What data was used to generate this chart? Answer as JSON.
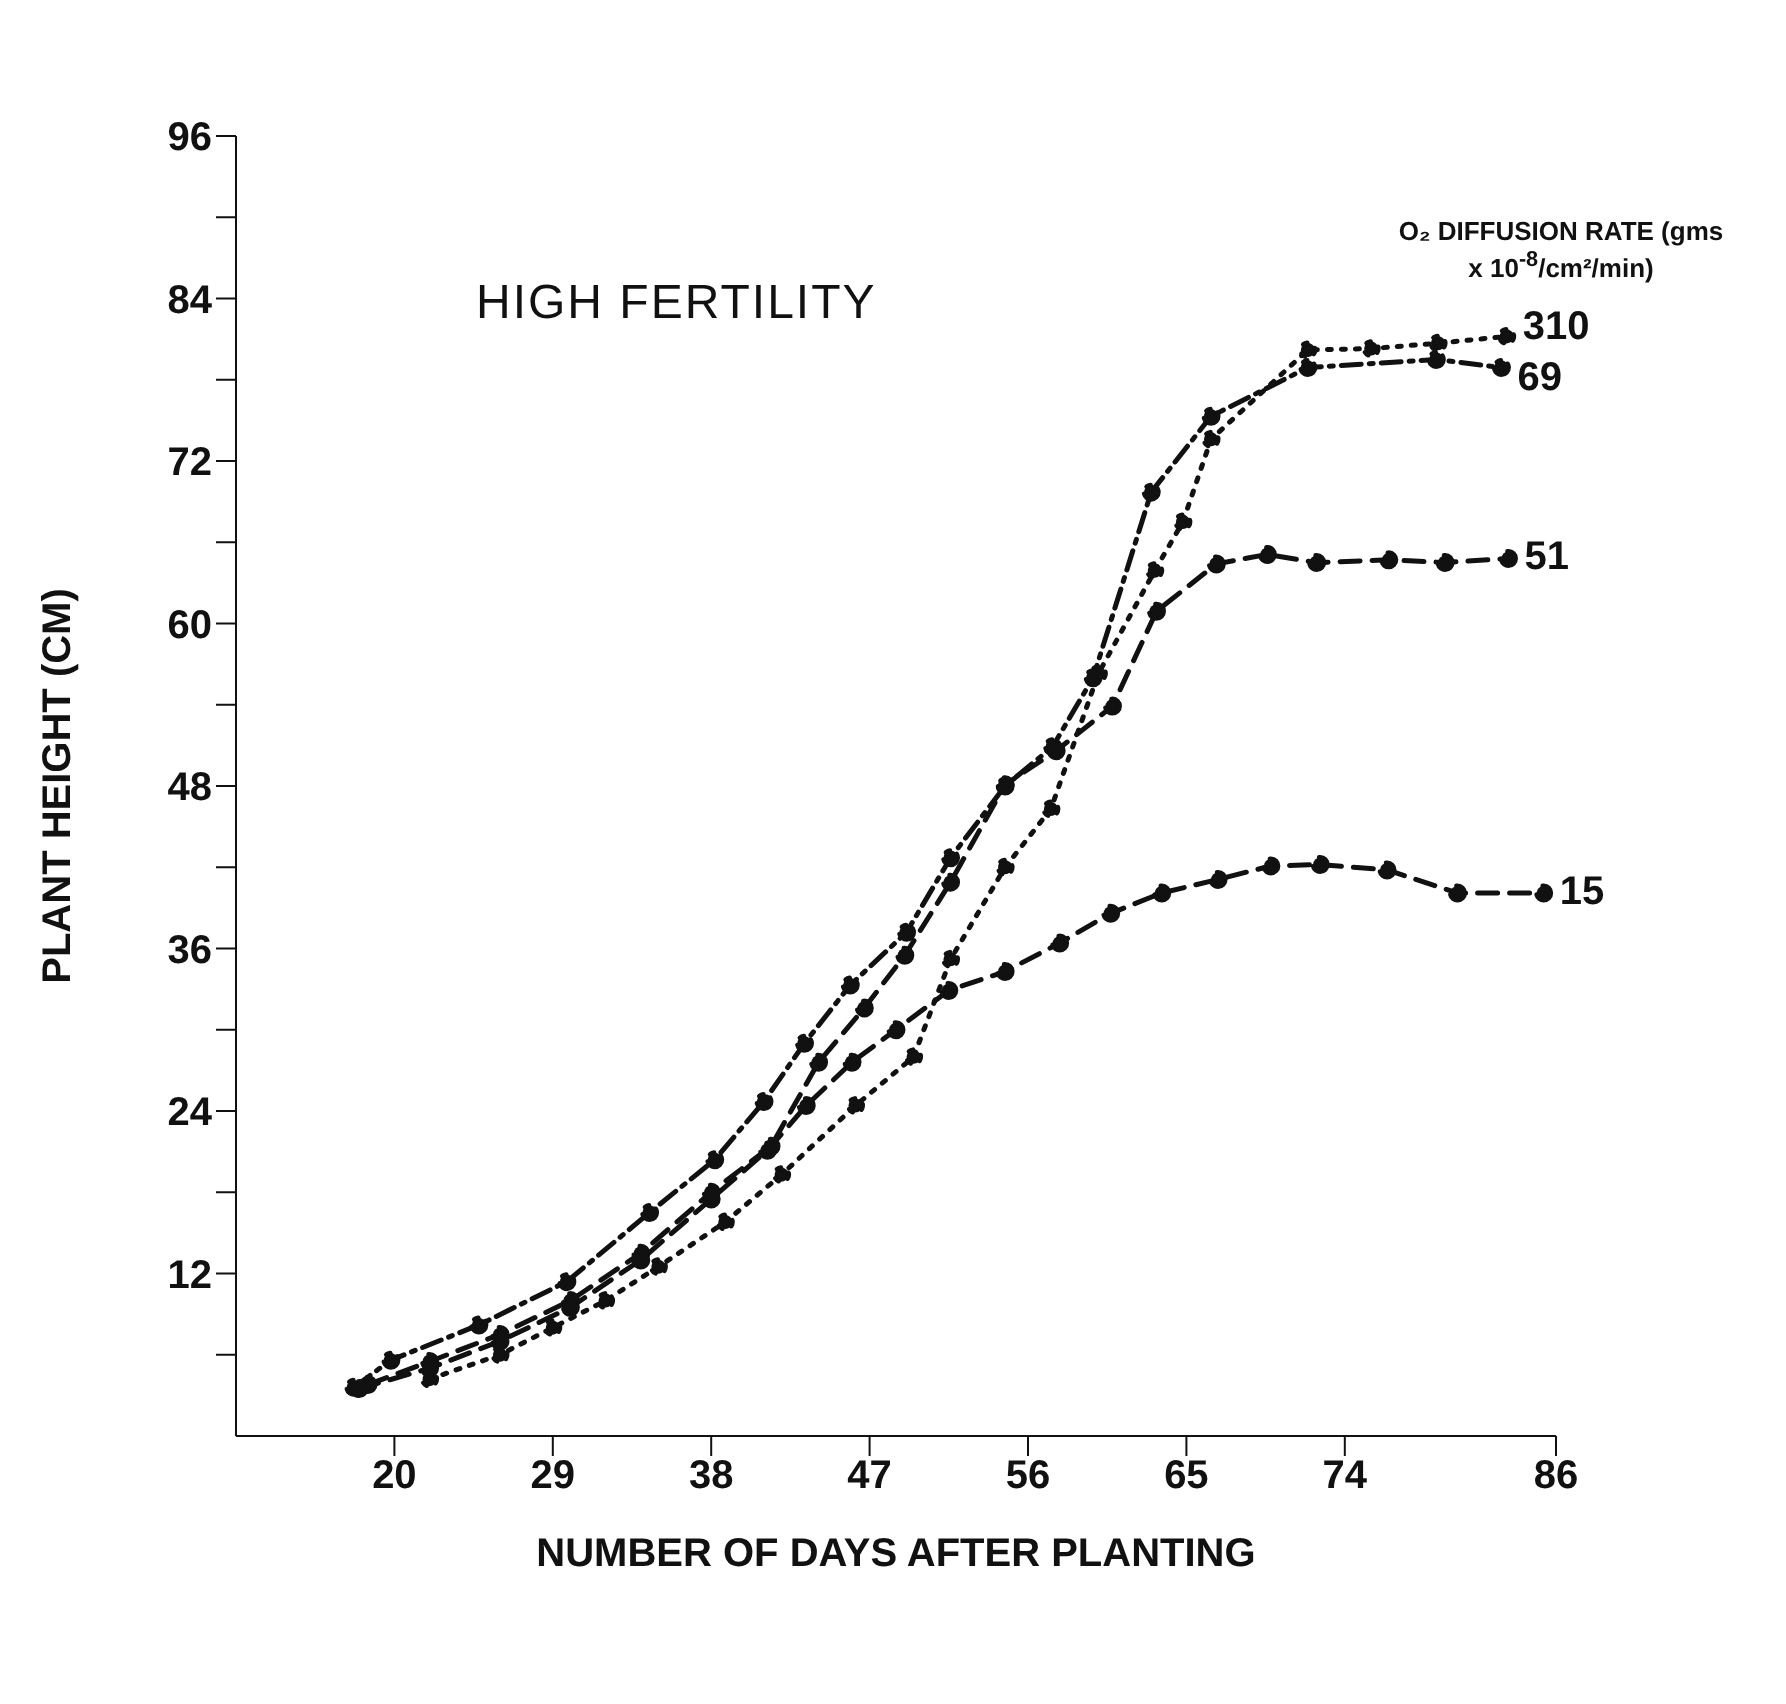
{
  "chart_data": {
    "type": "line",
    "title": "HIGH FERTILITY",
    "xlabel": "NUMBER OF DAYS AFTER PLANTING",
    "ylabel": "PLANT HEIGHT (CM)",
    "legend_title": "O₂ DIFFUSION RATE (gms x 10$^{-8}$/cm²/min)",
    "xlim": [
      11,
      86
    ],
    "xticks": [
      20,
      29,
      38,
      47,
      56,
      65,
      74,
      86
    ],
    "ylim": [
      0,
      96
    ],
    "yticks": [
      {
        "value": 6,
        "label": null
      },
      12,
      {
        "value": 18,
        "label": null
      },
      24,
      {
        "value": 30,
        "label": null
      },
      36,
      {
        "value": 42,
        "label": null
      },
      48,
      {
        "value": 54,
        "label": null
      },
      60,
      {
        "value": 66,
        "label": null
      },
      72,
      {
        "value": 78,
        "label": null
      },
      84,
      {
        "value": 90,
        "label": null
      },
      96
    ],
    "grid": false,
    "legend": false,
    "marker": "circle",
    "series": [
      {
        "name": "310",
        "color": "#111111",
        "line_style": "dotted",
        "x": [
          22,
          26,
          29,
          32,
          35,
          38.8,
          42,
          46.2,
          49.5,
          51.6,
          54.7,
          57.3,
          60,
          63.2,
          64.8,
          66.4,
          71.9,
          75.5,
          79.3,
          83.2
        ],
        "values": [
          4.2,
          6,
          8,
          10,
          12.5,
          15.8,
          19.3,
          24.4,
          28,
          35.2,
          42,
          46.3,
          56.3,
          63.9,
          67.5,
          73.6,
          80.2,
          80.3,
          80.7,
          81.2
        ]
      },
      {
        "name": "69",
        "color": "#111111",
        "line_style": "dashdot",
        "x": [
          17.7,
          19.8,
          24.8,
          29.8,
          34.5,
          38.2,
          41,
          43.3,
          45.9,
          49.1,
          51.6,
          54.7,
          57.4,
          59.7,
          63,
          66.4,
          71.9,
          79.2,
          82.9
        ],
        "values": [
          3.6,
          5.6,
          8.2,
          11.4,
          16.5,
          20.4,
          24.7,
          29,
          33.3,
          37.2,
          42.7,
          48,
          50.9,
          56,
          69.7,
          75.3,
          78.9,
          79.5,
          78.9
        ]
      },
      {
        "name": "51",
        "color": "#111111",
        "line_style": "dashed",
        "x": [
          18.5,
          22,
          26,
          30,
          34,
          38,
          41.4,
          44.1,
          46.7,
          49,
          51.6,
          54.7,
          57.6,
          60.8,
          63.3,
          66.7,
          69.6,
          72.4,
          76.5,
          79.7,
          83.3
        ],
        "values": [
          3.8,
          5.5,
          7.5,
          10,
          13.5,
          18,
          21.4,
          27.6,
          31.6,
          35.5,
          40.9,
          48.1,
          50.6,
          53.9,
          60.9,
          64.4,
          65.1,
          64.5,
          64.7,
          64.5,
          64.8
        ]
      },
      {
        "name": "15",
        "color": "#111111",
        "line_style": "dashed",
        "x": [
          18,
          22,
          26,
          30,
          34,
          38,
          41.2,
          43.4,
          46,
          48.5,
          51.5,
          54.7,
          57.8,
          60.7,
          63.6,
          66.8,
          69.8,
          72.6,
          76.4,
          80.4,
          85.3
        ],
        "values": [
          3.5,
          5,
          7,
          9.5,
          13,
          17.5,
          21.1,
          24.4,
          27.6,
          30,
          32.9,
          34.3,
          36.4,
          38.6,
          40.1,
          41.1,
          42.1,
          42.2,
          41.8,
          40.1,
          40.1
        ]
      }
    ]
  }
}
